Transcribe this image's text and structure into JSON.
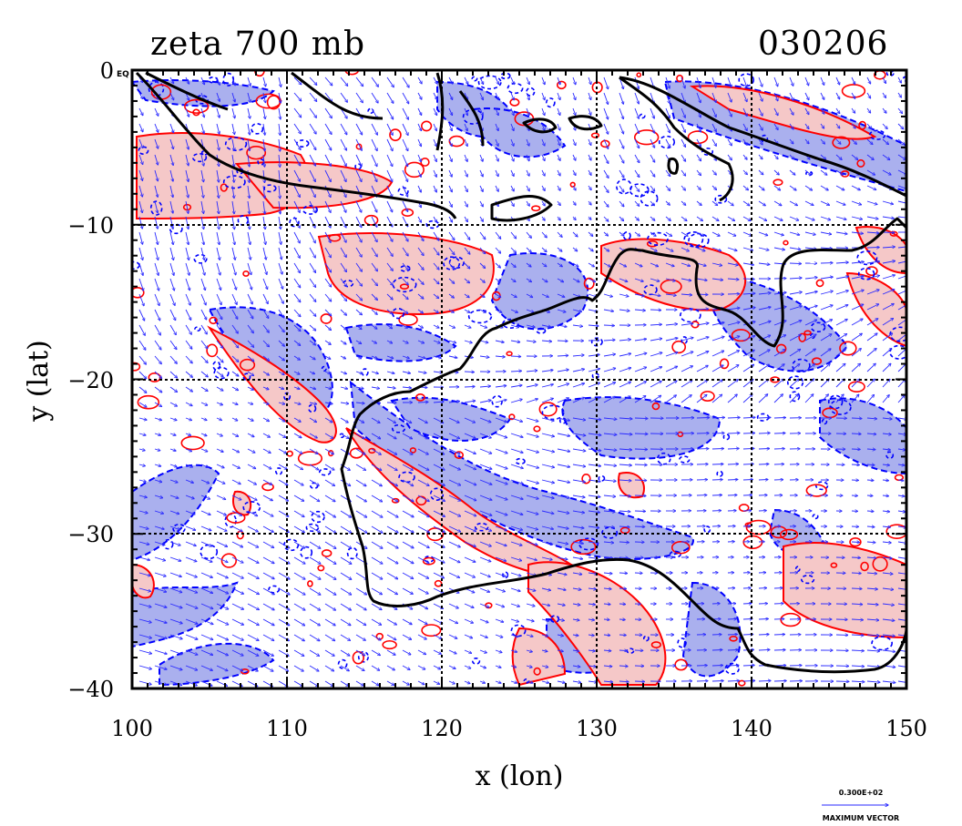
{
  "plot": {
    "title": "zeta 700 mb",
    "date": "030206",
    "corner_label": "EQ",
    "xlabel": "x (lon)",
    "ylabel": "y (lat)",
    "x_ticks": [
      "100",
      "110",
      "120",
      "130",
      "140",
      "150"
    ],
    "y_ticks": [
      "0",
      "−10",
      "−20",
      "−30",
      "−40"
    ],
    "vector_legend_value": "0.300E+02",
    "vector_legend_caption": "MAXIMUM VECTOR",
    "x_range": [
      100,
      150
    ],
    "y_range": [
      -40,
      0
    ],
    "gridlines": "dashed",
    "colors": {
      "positive_fill": "#f5c8c8",
      "positive_contour": "#ff0000",
      "negative_fill": "#aab0ee",
      "negative_contour": "#0000ff",
      "coastline": "#000000",
      "vector": "#2a2aff"
    }
  }
}
